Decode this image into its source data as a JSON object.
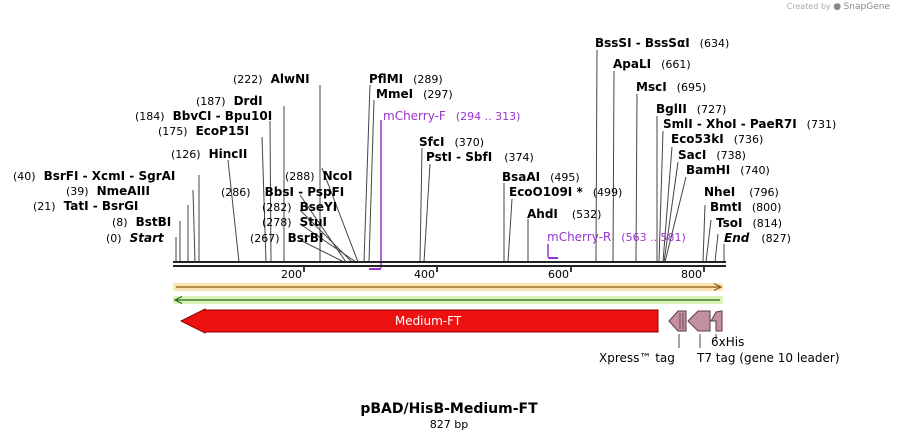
{
  "credit": {
    "prefix": "Created by",
    "brand": "SnapGene"
  },
  "plasmid": {
    "name": "pBAD/HisB-Medium-FT",
    "length": "827 bp"
  },
  "ruler": {
    "ticks": [
      "200",
      "400",
      "600",
      "800"
    ]
  },
  "sites": [
    {
      "num": "(0)",
      "name": "Start"
    },
    {
      "num": "(8)",
      "name": "BstBI"
    },
    {
      "num": "(21)",
      "name": "TatI - BsrGI"
    },
    {
      "num": "(39)",
      "name": "NmeAIII"
    },
    {
      "num": "(40)",
      "name": "BsrFI - XcmI - SgrAI"
    },
    {
      "num": "(126)",
      "name": "HincII"
    },
    {
      "num": "(175)",
      "name": "EcoP15I"
    },
    {
      "num": "(184)",
      "name": "BbvCI - Bpu10I"
    },
    {
      "num": "(187)",
      "name": "DrdI"
    },
    {
      "num": "(222)",
      "name": "AlwNI"
    },
    {
      "num": "(267)",
      "name": "BsrBI"
    },
    {
      "num": "(278)",
      "name": "StuI"
    },
    {
      "num": "(282)",
      "name": "BseYI"
    },
    {
      "num": "(286)",
      "name": "BbsI - PspFI"
    },
    {
      "num": "(288)",
      "name": "NcoI"
    },
    {
      "num": "(289)",
      "name": "PflMI"
    },
    {
      "num": "(297)",
      "name": "MmeI"
    },
    {
      "num": "(370)",
      "name": "SfcI"
    },
    {
      "num": "(374)",
      "name": "PstI - SbfI"
    },
    {
      "num": "(495)",
      "name": "BsaAI"
    },
    {
      "num": "(499)",
      "name": "EcoO109I *"
    },
    {
      "num": "(532)",
      "name": "AhdI"
    },
    {
      "num": "(634)",
      "name": "BssSI - BssSαI"
    },
    {
      "num": "(661)",
      "name": "ApaLI"
    },
    {
      "num": "(695)",
      "name": "MscI"
    },
    {
      "num": "(727)",
      "name": "BglII"
    },
    {
      "num": "(731)",
      "name": "SmlI - XhoI - PaeR7I"
    },
    {
      "num": "(736)",
      "name": "Eco53kI"
    },
    {
      "num": "(738)",
      "name": "SacI"
    },
    {
      "num": "(740)",
      "name": "BamHI"
    },
    {
      "num": "(796)",
      "name": "NheI"
    },
    {
      "num": "(800)",
      "name": "BmtI"
    },
    {
      "num": "(814)",
      "name": "TsoI"
    },
    {
      "num": "(827)",
      "name": "End"
    }
  ],
  "primers": [
    {
      "name": "mCherry-F",
      "range": "(294 .. 313)"
    },
    {
      "name": "mCherry-R",
      "range": "(563 .. 581)"
    }
  ],
  "features": {
    "main": "Medium-FT",
    "tags": [
      "6xHis",
      "Xpress™ tag",
      "T7 tag (gene 10 leader)"
    ]
  },
  "colors": {
    "main_feature": "#ee1111",
    "tag_feature": "#c4909f",
    "primer": "#9933cc",
    "orange_strand": "#f0a030",
    "green_strand": "#66cc22",
    "backbone": "#222222"
  }
}
